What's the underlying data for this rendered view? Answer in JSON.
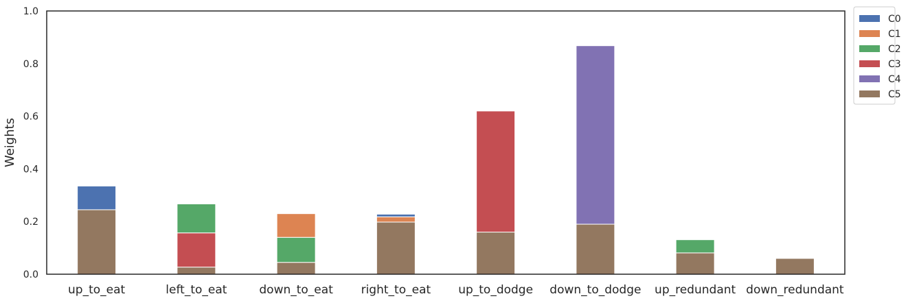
{
  "chart_data": {
    "type": "bar",
    "stacked": true,
    "ylabel": "Weights",
    "xlabel": "",
    "ylim": [
      0,
      1
    ],
    "yticks": [
      "0.0",
      "0.2",
      "0.4",
      "0.6",
      "0.8",
      "1.0"
    ],
    "grid": false,
    "legend_position": "outside-top-right",
    "categories": [
      "up_to_eat",
      "left_to_eat",
      "down_to_eat",
      "right_to_eat",
      "up_to_dodge",
      "down_to_dodge",
      "up_redundant",
      "down_redundant"
    ],
    "stack_order": [
      "C5",
      "C4",
      "C3",
      "C2",
      "C1",
      "C0"
    ],
    "series": [
      {
        "name": "C0",
        "color": "#4c72b0",
        "values": [
          0.09,
          0,
          0,
          0.01,
          0,
          0,
          0,
          0
        ]
      },
      {
        "name": "C1",
        "color": "#dd8452",
        "values": [
          0,
          0,
          0.09,
          0.02,
          0,
          0,
          0,
          0
        ]
      },
      {
        "name": "C2",
        "color": "#55a868",
        "values": [
          0,
          0.11,
          0.095,
          0,
          0,
          0,
          0.05,
          0
        ]
      },
      {
        "name": "C3",
        "color": "#c44e52",
        "values": [
          0,
          0.13,
          0,
          0,
          0.46,
          0,
          0,
          0
        ]
      },
      {
        "name": "C4",
        "color": "#8172b3",
        "values": [
          0,
          0,
          0,
          0,
          0,
          0.678,
          0,
          0
        ]
      },
      {
        "name": "C5",
        "color": "#937860",
        "values": [
          0.245,
          0.027,
          0.045,
          0.198,
          0.16,
          0.19,
          0.081,
          0.06
        ]
      }
    ]
  }
}
